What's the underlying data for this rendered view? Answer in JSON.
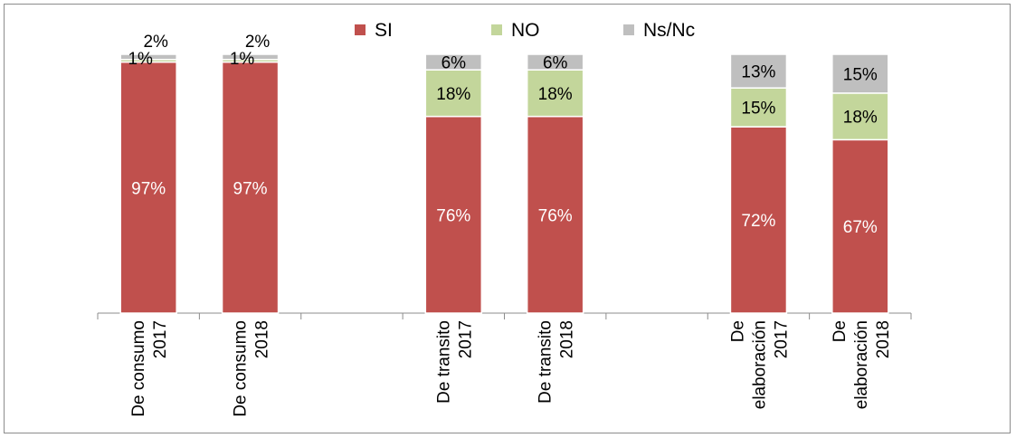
{
  "chart_data": {
    "type": "bar",
    "stacked": true,
    "percent_scale": true,
    "categories": [
      [
        "De consumo",
        "2017"
      ],
      [
        "De consumo",
        "2018"
      ],
      [
        "",
        ""
      ],
      [
        "De transito",
        "2017"
      ],
      [
        "De transito",
        "2018"
      ],
      [
        "",
        ""
      ],
      [
        "De",
        "elaboración",
        "2017"
      ],
      [
        "De",
        "elaboración",
        "2018"
      ]
    ],
    "series": [
      {
        "name": "SI",
        "color": "#c0504d",
        "values": [
          97,
          97,
          null,
          76,
          76,
          null,
          72,
          67
        ],
        "labels": [
          "97%",
          "97%",
          "",
          "76%",
          "76%",
          "",
          "72%",
          "67%"
        ]
      },
      {
        "name": "NO",
        "color": "#c3d69b",
        "values": [
          1,
          1,
          null,
          18,
          18,
          null,
          15,
          18
        ],
        "labels": [
          "1%",
          "1%",
          "",
          "18%",
          "18%",
          "",
          "15%",
          "18%"
        ]
      },
      {
        "name": "Ns/Nc",
        "color": "#bfbfbf",
        "values": [
          2,
          2,
          null,
          6,
          6,
          null,
          13,
          15
        ],
        "labels": [
          "2%",
          "2%",
          "",
          "6%",
          "6%",
          "",
          "13%",
          "15%"
        ]
      }
    ],
    "ylim": [
      0,
      100
    ],
    "grid": false,
    "legend_position": "top-center",
    "xlabel": "",
    "ylabel": "",
    "title": ""
  }
}
